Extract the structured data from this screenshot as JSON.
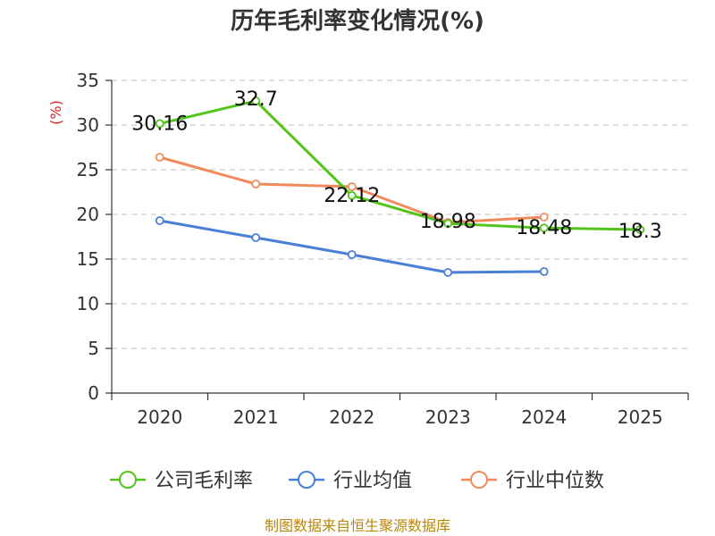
{
  "chart_data": {
    "type": "line",
    "title": "历年毛利率变化情况(%)",
    "ylabel": "(%)",
    "xlabel": "",
    "categories": [
      "2020",
      "2021",
      "2022",
      "2023",
      "2024",
      "2025"
    ],
    "ylim": [
      0,
      35
    ],
    "yticks": [
      0,
      5,
      10,
      15,
      20,
      25,
      30,
      35
    ],
    "grid": true,
    "legend_position": "bottom",
    "series": [
      {
        "name": "公司毛利率",
        "color": "#52c41a",
        "values": [
          30.16,
          32.7,
          22.12,
          18.98,
          18.48,
          18.3
        ],
        "labels": [
          "30.16",
          "32.7",
          "22.12",
          "18.98",
          "18.48",
          "18.3"
        ]
      },
      {
        "name": "行业均值",
        "color": "#4a7fd6",
        "values": [
          19.3,
          17.4,
          15.5,
          13.5,
          13.6,
          null
        ],
        "labels": []
      },
      {
        "name": "行业中位数",
        "color": "#f08a5d",
        "values": [
          26.4,
          23.4,
          23.1,
          19.1,
          19.7,
          null
        ],
        "labels": []
      }
    ]
  },
  "source": "制图数据来自恒生聚源数据库"
}
